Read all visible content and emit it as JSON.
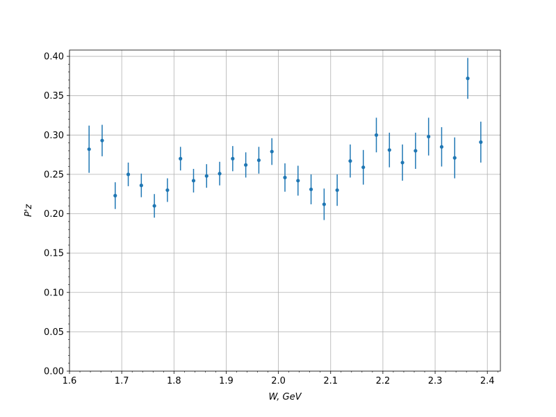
{
  "chart_data": {
    "type": "scatter",
    "errorbars": true,
    "xlabel": "W, GeV",
    "ylabel": "P'z",
    "xlim": [
      1.6,
      2.425
    ],
    "ylim": [
      0.0,
      0.408
    ],
    "grid": true,
    "x_ticks": [
      "1.6",
      "1.7",
      "1.8",
      "1.9",
      "2.0",
      "2.1",
      "2.2",
      "2.3",
      "2.4"
    ],
    "y_ticks": [
      "0.00",
      "0.05",
      "0.10",
      "0.15",
      "0.20",
      "0.25",
      "0.30",
      "0.35",
      "0.40"
    ],
    "color": "#1f77b4",
    "points": [
      {
        "x": 1.6375,
        "y": 0.282,
        "err": 0.03
      },
      {
        "x": 1.6625,
        "y": 0.293,
        "err": 0.02
      },
      {
        "x": 1.6875,
        "y": 0.223,
        "err": 0.017
      },
      {
        "x": 1.7125,
        "y": 0.25,
        "err": 0.015
      },
      {
        "x": 1.7375,
        "y": 0.236,
        "err": 0.015
      },
      {
        "x": 1.7625,
        "y": 0.21,
        "err": 0.015
      },
      {
        "x": 1.7875,
        "y": 0.23,
        "err": 0.015
      },
      {
        "x": 1.8125,
        "y": 0.27,
        "err": 0.015
      },
      {
        "x": 1.8375,
        "y": 0.242,
        "err": 0.015
      },
      {
        "x": 1.8625,
        "y": 0.248,
        "err": 0.015
      },
      {
        "x": 1.8875,
        "y": 0.251,
        "err": 0.015
      },
      {
        "x": 1.9125,
        "y": 0.27,
        "err": 0.016
      },
      {
        "x": 1.9375,
        "y": 0.262,
        "err": 0.016
      },
      {
        "x": 1.9625,
        "y": 0.268,
        "err": 0.017
      },
      {
        "x": 1.9875,
        "y": 0.279,
        "err": 0.017
      },
      {
        "x": 2.0125,
        "y": 0.246,
        "err": 0.018
      },
      {
        "x": 2.0375,
        "y": 0.242,
        "err": 0.019
      },
      {
        "x": 2.0625,
        "y": 0.231,
        "err": 0.019
      },
      {
        "x": 2.0875,
        "y": 0.212,
        "err": 0.02
      },
      {
        "x": 2.1125,
        "y": 0.23,
        "err": 0.02
      },
      {
        "x": 2.1375,
        "y": 0.267,
        "err": 0.021
      },
      {
        "x": 2.1625,
        "y": 0.259,
        "err": 0.022
      },
      {
        "x": 2.1875,
        "y": 0.3,
        "err": 0.022
      },
      {
        "x": 2.2125,
        "y": 0.281,
        "err": 0.022
      },
      {
        "x": 2.2375,
        "y": 0.265,
        "err": 0.023
      },
      {
        "x": 2.2625,
        "y": 0.28,
        "err": 0.023
      },
      {
        "x": 2.2875,
        "y": 0.298,
        "err": 0.024
      },
      {
        "x": 2.3125,
        "y": 0.285,
        "err": 0.025
      },
      {
        "x": 2.3375,
        "y": 0.271,
        "err": 0.026
      },
      {
        "x": 2.3625,
        "y": 0.372,
        "err": 0.026
      },
      {
        "x": 2.3875,
        "y": 0.291,
        "err": 0.026
      }
    ]
  }
}
